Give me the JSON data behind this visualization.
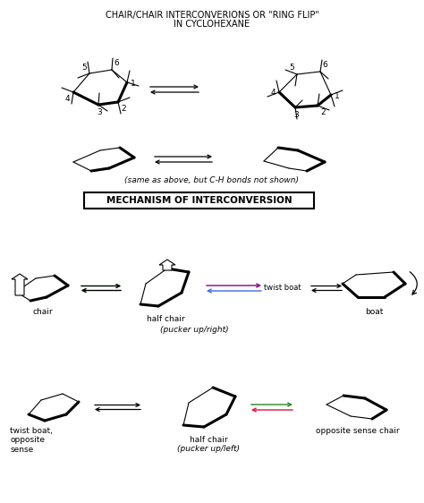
{
  "title_line1": "CHAIR/CHAIR INTERCONVERIONS OR \"RING FLIP\"",
  "title_line2": "IN CYCLOHEXANE",
  "bg_color": "#ffffff",
  "label_same_as": "(same as above, but C-H bonds not shown)",
  "label_mechanism": "MECHANISM OF INTERCONVERSION",
  "label_pucker_right": "(pucker up/right)",
  "label_pucker_left": "(pucker up/left)",
  "label_chair": "chair",
  "label_half_chair": "half chair",
  "label_boat": "boat",
  "label_twist_boat": "twist boat",
  "label_twist_boat_opp": "twist boat,\nopposite\nsense",
  "label_opp_sense_chair": "opposite sense chair"
}
